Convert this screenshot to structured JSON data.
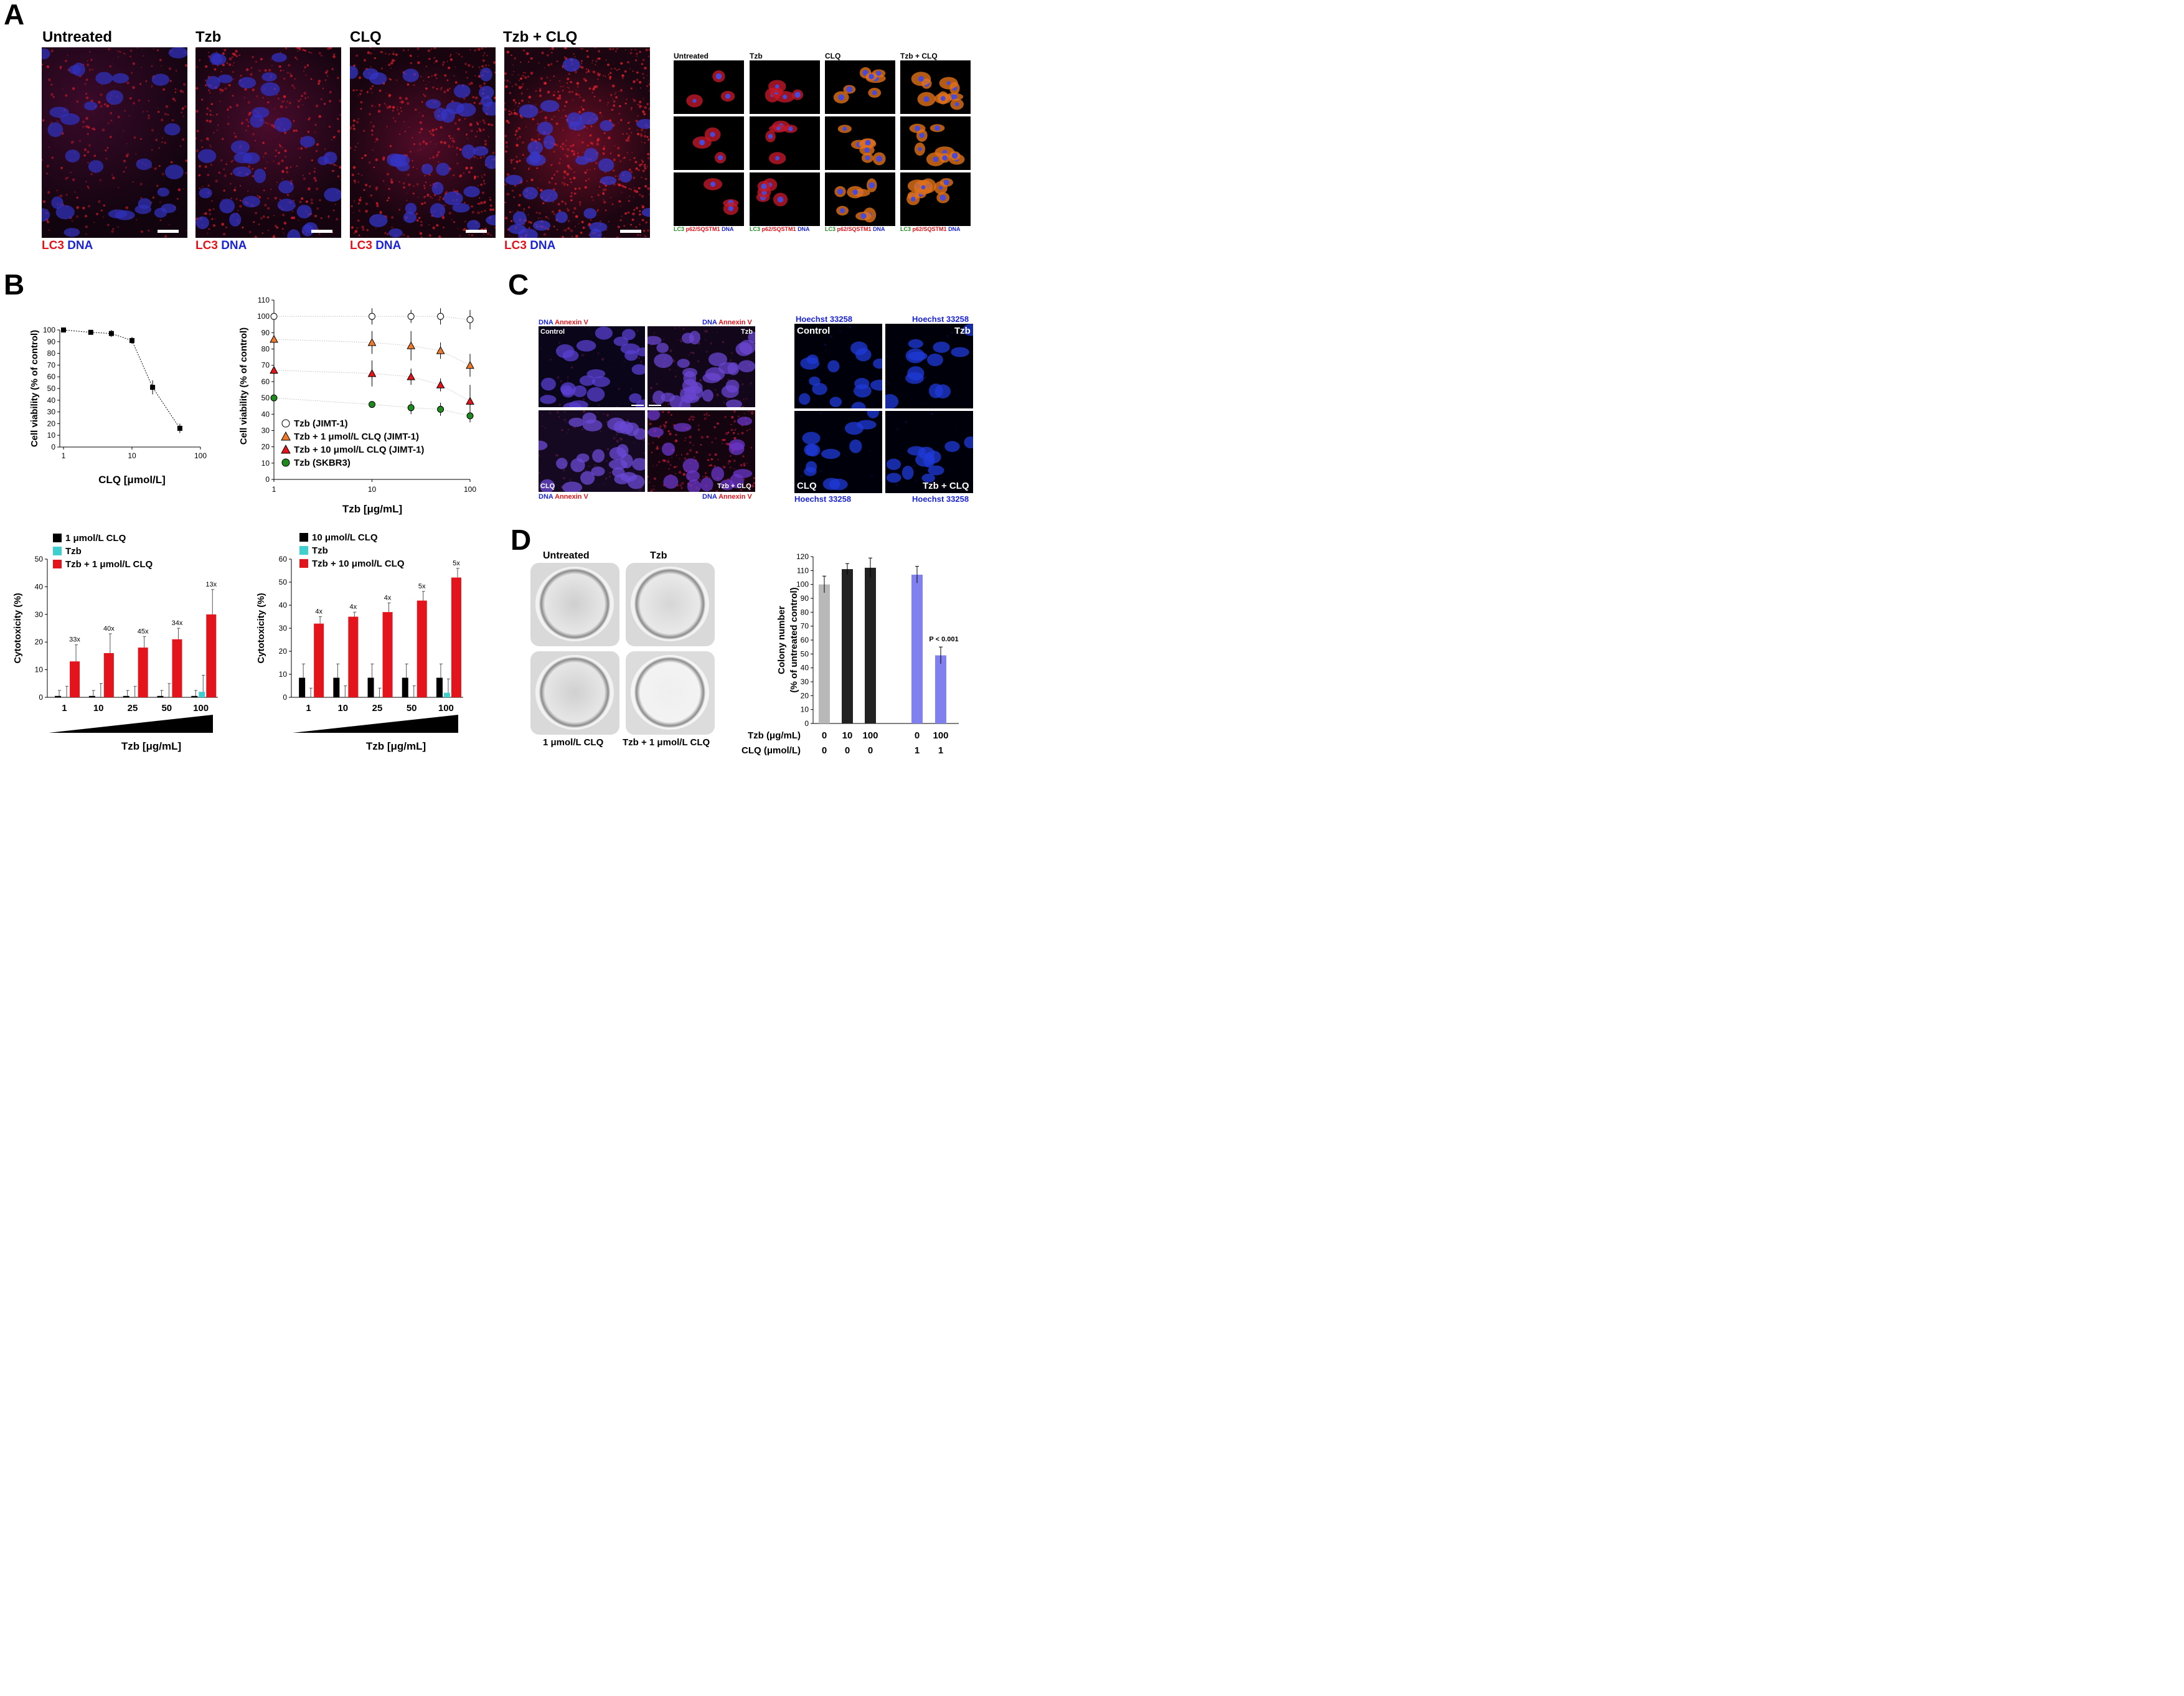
{
  "panels": {
    "A": "A",
    "B": "B",
    "C": "C",
    "D": "D"
  },
  "panelA": {
    "large": [
      {
        "title": "Untreated"
      },
      {
        "title": "Tzb"
      },
      {
        "title": "CLQ"
      },
      {
        "title": "Tzb + CLQ"
      }
    ],
    "stain_red": "LC3",
    "stain_blue": "DNA",
    "small_titles": [
      "Untreated",
      "Tzb",
      "CLQ",
      "Tzb + CLQ"
    ],
    "small_legend": {
      "green": "LC3",
      "red": "p62/SQSTM1",
      "blue": "DNA"
    }
  },
  "panelC": {
    "annexin": {
      "dna": "DNA",
      "annexin": "Annexin V",
      "labels": [
        "Control",
        "Tzb",
        "CLQ",
        "Tzb + CLQ"
      ]
    },
    "hoechst": {
      "stain": "Hoechst 33258",
      "labels": [
        "Control",
        "Tzb",
        "CLQ",
        "Tzb + CLQ"
      ]
    }
  },
  "panelD": {
    "plate_top": [
      "Untreated",
      "Tzb"
    ],
    "plate_bottom": [
      "1 μmol/L CLQ",
      "Tzb + 1 μmol/L CLQ"
    ]
  },
  "colors": {
    "red": "#e3141b",
    "blue": "#1a23d8",
    "cyan": "#3fcfcf",
    "orange": "#ef7a2a",
    "green": "#1e8a1e",
    "periwinkle": "#8080ee"
  },
  "chart_data": [
    {
      "id": "clq-viability",
      "type": "line",
      "xlabel": "CLQ [μmol/L]",
      "ylabel": "Cell viability (% of control)",
      "xscale": "log",
      "xlim": [
        1,
        100
      ],
      "ylim": [
        0,
        100
      ],
      "xticks": [
        "1",
        "10",
        "100"
      ],
      "yticks": [
        "0",
        "10",
        "20",
        "30",
        "40",
        "50",
        "60",
        "70",
        "80",
        "90",
        "100"
      ],
      "x": [
        1,
        2.5,
        5,
        10,
        20,
        50
      ],
      "y": [
        100,
        98,
        97,
        91,
        51,
        16
      ],
      "err": [
        1,
        2,
        3,
        3,
        6,
        4
      ]
    },
    {
      "id": "tzb-viability",
      "type": "scatter",
      "xlabel": "Tzb [μg/mL]",
      "ylabel": "Cell viability (% of control)",
      "xscale": "log",
      "xlim": [
        1,
        100
      ],
      "ylim": [
        0,
        110
      ],
      "xticks": [
        "1",
        "10",
        "100"
      ],
      "yticks": [
        "0",
        "10",
        "20",
        "30",
        "40",
        "50",
        "60",
        "70",
        "80",
        "90",
        "100",
        "110"
      ],
      "x": [
        1,
        10,
        25,
        50,
        100
      ],
      "series": [
        {
          "name": "Tzb (JIMT-1)",
          "y": [
            100,
            100,
            100,
            100,
            98
          ],
          "err": [
            0,
            5,
            4,
            5,
            6
          ]
        },
        {
          "name": "Tzb + 1 μmol/L CLQ (JIMT-1)",
          "y": [
            86,
            84,
            82,
            79,
            70
          ],
          "err": [
            0,
            7,
            9,
            5,
            7
          ]
        },
        {
          "name": "Tzb + 10 μmol/L CLQ (JIMT-1)",
          "y": [
            67,
            65,
            63,
            58,
            48
          ],
          "err": [
            0,
            8,
            5,
            4,
            10
          ]
        },
        {
          "name": "Tzb (SKBR3)",
          "y": [
            50,
            46,
            44,
            43,
            39
          ],
          "err": [
            0,
            0,
            4,
            4,
            4
          ]
        }
      ]
    },
    {
      "id": "cytotox-1",
      "type": "bar",
      "xlabel": "Tzb [μg/mL]",
      "ylabel": "Cytotoxicity (%)",
      "ylim": [
        0,
        50
      ],
      "yticks": [
        "0",
        "10",
        "20",
        "30",
        "40",
        "50"
      ],
      "categories": [
        "1",
        "10",
        "25",
        "50",
        "100"
      ],
      "series": [
        {
          "name": "1 μmol/L CLQ",
          "values": [
            0.5,
            0.5,
            0.5,
            0.5,
            0.5
          ],
          "err": [
            2,
            2,
            2,
            2,
            2
          ]
        },
        {
          "name": "Tzb",
          "values": [
            0,
            0,
            0,
            0,
            2
          ],
          "err": [
            4,
            5,
            4,
            5,
            6
          ]
        },
        {
          "name": "Tzb + 1 μmol/L CLQ",
          "values": [
            13,
            16,
            18,
            21,
            30
          ],
          "err": [
            6,
            7,
            4,
            4,
            9
          ]
        }
      ],
      "annotations": [
        "33x",
        "40x",
        "45x",
        "34x",
        "13x"
      ]
    },
    {
      "id": "cytotox-10",
      "type": "bar",
      "xlabel": "Tzb [μg/mL]",
      "ylabel": "Cytotoxicity (%)",
      "ylim": [
        0,
        60
      ],
      "yticks": [
        "0",
        "10",
        "20",
        "30",
        "40",
        "50",
        "60"
      ],
      "categories": [
        "1",
        "10",
        "25",
        "50",
        "100"
      ],
      "series": [
        {
          "name": "10 μmol/L CLQ",
          "values": [
            8.5,
            8.5,
            8.5,
            8.5,
            8.5
          ],
          "err": [
            6,
            6,
            6,
            6,
            6
          ]
        },
        {
          "name": "Tzb",
          "values": [
            0,
            0,
            0,
            0,
            2
          ],
          "err": [
            4,
            5,
            4,
            5,
            6
          ]
        },
        {
          "name": "Tzb + 10 μmol/L CLQ",
          "values": [
            32,
            35,
            37,
            42,
            52
          ],
          "err": [
            3,
            2,
            4,
            4,
            4
          ]
        }
      ],
      "annotations": [
        "4x",
        "4x",
        "4x",
        "5x",
        "5x"
      ]
    },
    {
      "id": "colony",
      "type": "bar",
      "ylabel": "Colony number (% of untreated control)",
      "ylim": [
        0,
        120
      ],
      "yticks": [
        "0",
        "10",
        "20",
        "30",
        "40",
        "50",
        "60",
        "70",
        "80",
        "90",
        "100",
        "110",
        "120"
      ],
      "rows": [
        {
          "label": "Tzb (μg/mL)",
          "values": [
            "0",
            "10",
            "100",
            "0",
            "100"
          ]
        },
        {
          "label": "CLQ (μmol/L)",
          "values": [
            "0",
            "0",
            "0",
            "1",
            "1"
          ]
        }
      ],
      "values": [
        100,
        111,
        112,
        107,
        49
      ],
      "err": [
        6,
        4,
        7,
        6,
        6
      ],
      "annotation": "P < 0.001"
    }
  ]
}
